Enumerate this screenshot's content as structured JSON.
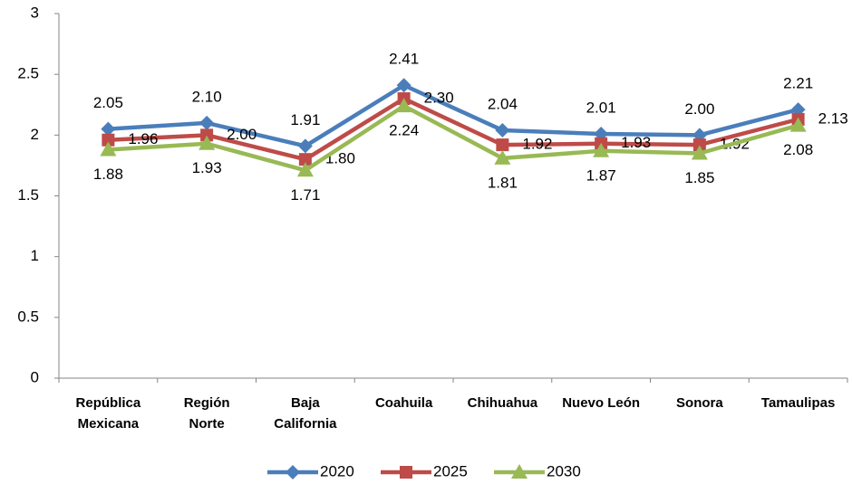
{
  "chart_data": {
    "type": "line",
    "categories": [
      "República\nMexicana",
      "Región\nNorte",
      "Baja\nCalifornia",
      "Coahuila",
      "Chihuahua",
      "Nuevo León",
      "Sonora",
      "Tamaulipas"
    ],
    "series": [
      {
        "name": "2020",
        "color": "#4a7ebb",
        "marker": "diamond",
        "values": [
          2.05,
          2.1,
          1.91,
          2.41,
          2.04,
          2.01,
          2.0,
          2.21
        ],
        "value_labels": [
          "2.05",
          "2.10",
          "1.91",
          "2.41",
          "2.04",
          "2.01",
          "2.00",
          "2.21"
        ]
      },
      {
        "name": "2025",
        "color": "#be4b48",
        "marker": "square",
        "values": [
          1.96,
          2.0,
          1.8,
          2.3,
          1.92,
          1.93,
          1.92,
          2.13
        ],
        "value_labels": [
          "1.96",
          "2.00",
          "1.80",
          "2.30",
          "1.92",
          "1.93",
          "1.92",
          "2.13"
        ]
      },
      {
        "name": "2030",
        "color": "#98b954",
        "marker": "triangle",
        "values": [
          1.88,
          1.93,
          1.71,
          2.24,
          1.81,
          1.87,
          1.85,
          2.08
        ],
        "value_labels": [
          "1.88",
          "1.93",
          "1.71",
          "2.24",
          "1.81",
          "1.87",
          "1.85",
          "2.08"
        ]
      }
    ],
    "ylim": [
      0,
      3
    ],
    "yticks": [
      0,
      0.5,
      1,
      1.5,
      2,
      2.5,
      3
    ],
    "grid": false,
    "legend": "bottom"
  }
}
